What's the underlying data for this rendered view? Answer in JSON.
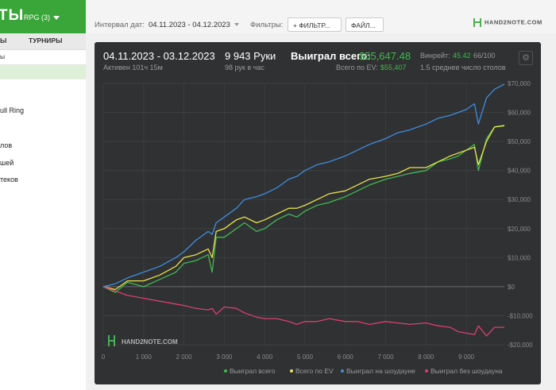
{
  "top": {
    "title": "ТЫ",
    "rpg": "RPG (3)"
  },
  "sidebar": {
    "tabs": [
      "Ы",
      "ТУРНИРЫ"
    ],
    "search_text": "ы",
    "items": [
      "ull Ring",
      "лов",
      "шей",
      "теков"
    ]
  },
  "toolbar": {
    "interval_label": "Интервал дат:",
    "interval_value": "04.11.2023 - 04.12.2023",
    "filters_label": "Фильтры:",
    "filter_button": "+ ФИЛЬТР...",
    "file_button": "ФАЙЛ...",
    "logo": "HAND2NOTE.COM"
  },
  "stats": {
    "period": "04.11.2023 - 03.12.2023",
    "active": "Активен 101ч 15м",
    "hands": "9 943 Руки",
    "hands_per_hour": "98 рук в час",
    "won_label": "Выиграл всего:",
    "won_value": "$55,647.48",
    "ev_label": "Всего по EV:",
    "ev_value": "$55,407",
    "winrate_label": "Винрейт:",
    "winrate_value": "45.42",
    "winrate_suffix": "66/100",
    "tables": "1.5 среднее число столов",
    "watermark": "HAND2NOTE.COM"
  },
  "colors": {
    "green": "#3fb950",
    "yellow": "#e7e34a",
    "blue": "#3d8ee0",
    "pink": "#d8406e",
    "accent": "#3aa63a"
  },
  "chart_data": {
    "type": "line",
    "xlim": [
      0,
      9943
    ],
    "ylim": [
      -20000,
      70000
    ],
    "x_ticks": [
      0,
      1000,
      2000,
      3000,
      4000,
      5000,
      6000,
      7000,
      8000,
      9000
    ],
    "x_tick_labels": [
      "0",
      "1 000",
      "2 000",
      "3 000",
      "4 000",
      "5 000",
      "6 000",
      "7 000",
      "8 000",
      "9 000"
    ],
    "y_ticks": [
      70000,
      60000,
      50000,
      40000,
      30000,
      20000,
      10000,
      0,
      -10000,
      -20000
    ],
    "y_tick_labels": [
      "$70,000",
      "$60,000",
      "$50,000",
      "$40,000",
      "$30,000",
      "$20,000",
      "$10,000",
      "$0",
      "-$10,000",
      "-$20,000"
    ],
    "grid": true,
    "legend_position": "bottom-right",
    "x": [
      0,
      300,
      600,
      1000,
      1400,
      1800,
      2000,
      2300,
      2600,
      2700,
      2800,
      3000,
      3300,
      3500,
      3800,
      4000,
      4300,
      4600,
      4800,
      5000,
      5300,
      5600,
      6000,
      6300,
      6600,
      7000,
      7300,
      7600,
      8000,
      8300,
      8600,
      8800,
      9000,
      9200,
      9300,
      9500,
      9700,
      9943
    ],
    "series": [
      {
        "name": "Выиграл всего",
        "color": "#3fb950",
        "values": [
          0,
          -2000,
          1500,
          0,
          2500,
          5000,
          8000,
          9000,
          11000,
          5000,
          17000,
          17000,
          20000,
          22000,
          19000,
          20000,
          23000,
          25000,
          24000,
          26000,
          28000,
          29000,
          31000,
          33000,
          35000,
          37000,
          38000,
          39000,
          40000,
          43000,
          44000,
          45000,
          47000,
          49000,
          40000,
          51000,
          55000,
          55600
        ]
      },
      {
        "name": "Всего по EV",
        "color": "#e7e34a",
        "values": [
          0,
          -1000,
          2000,
          2000,
          4000,
          7000,
          10000,
          11000,
          13000,
          10000,
          19000,
          20000,
          23000,
          24000,
          22000,
          23000,
          25000,
          27000,
          27000,
          28000,
          30000,
          32000,
          33000,
          35000,
          37000,
          38000,
          39000,
          41000,
          41000,
          43000,
          45000,
          46000,
          47000,
          48000,
          42000,
          50000,
          55000,
          55400
        ]
      },
      {
        "name": "Выиграл на шоудауне",
        "color": "#3d8ee0",
        "values": [
          0,
          1000,
          3000,
          5000,
          7000,
          10000,
          12000,
          16000,
          19000,
          18000,
          22000,
          24000,
          27000,
          30000,
          31000,
          32000,
          34000,
          37000,
          38000,
          40000,
          42000,
          43000,
          45000,
          47000,
          49000,
          51000,
          53000,
          54000,
          56000,
          58000,
          59000,
          60000,
          61000,
          63000,
          56000,
          65000,
          68000,
          69700
        ]
      },
      {
        "name": "Выиграл без шоудауна",
        "color": "#d8406e",
        "values": [
          0,
          -1500,
          -3000,
          -4000,
          -5000,
          -6000,
          -6500,
          -7500,
          -8000,
          -7500,
          -9500,
          -7000,
          -7500,
          -9000,
          -10500,
          -11000,
          -11000,
          -12000,
          -13000,
          -12000,
          -12000,
          -11000,
          -12000,
          -12000,
          -13000,
          -12000,
          -12500,
          -13000,
          -12500,
          -13500,
          -14000,
          -15500,
          -16000,
          -16500,
          -13500,
          -17000,
          -14000,
          -14000
        ]
      }
    ]
  }
}
